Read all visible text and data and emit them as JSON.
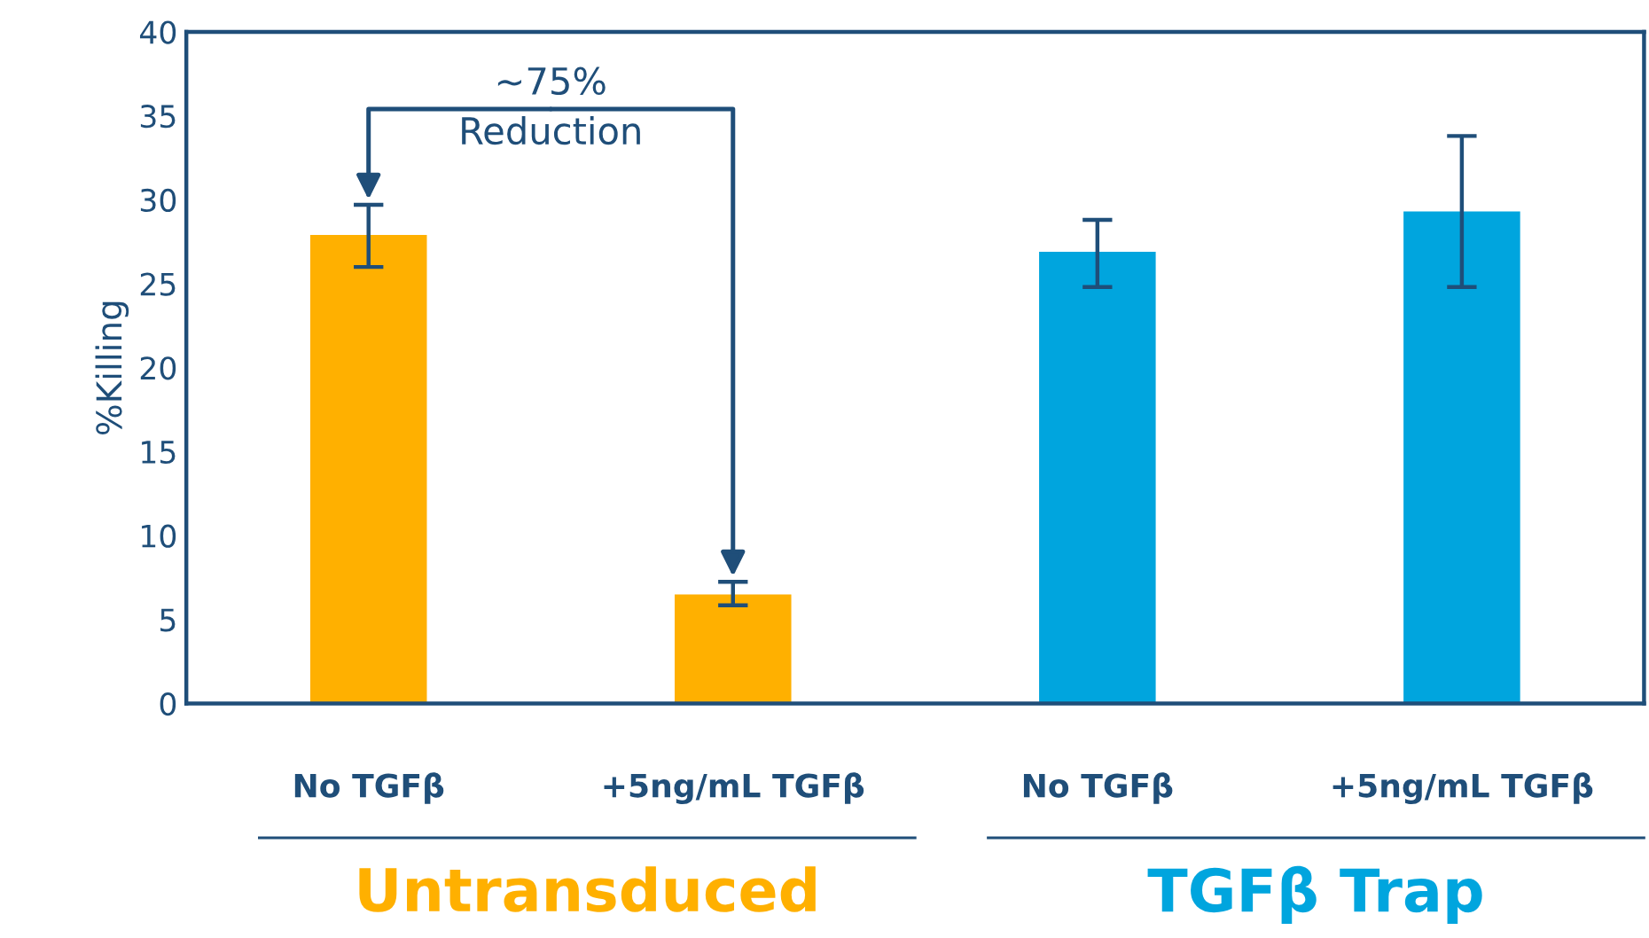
{
  "chart_data": {
    "type": "bar",
    "ylabel": "%Killing",
    "categories": [
      "No TGFβ",
      "+5ng/mL TGFβ",
      "No TGFβ",
      "+5ng/mL TGFβ"
    ],
    "values": [
      27.9,
      6.5,
      26.9,
      29.3
    ],
    "errors": [
      [
        26.0,
        29.7
      ],
      [
        5.85,
        7.25
      ],
      [
        24.8,
        28.8
      ],
      [
        24.8,
        33.8
      ]
    ],
    "colors": [
      "#ffb000",
      "#ffb000",
      "#00a5de",
      "#00a5de"
    ],
    "ylim": [
      0,
      40
    ],
    "yticks": [
      0,
      5,
      10,
      15,
      20,
      25,
      30,
      35,
      40
    ],
    "annotations": [
      "~75%\nReduction",
      "Untransduced",
      "TGFβ Trap"
    ]
  }
}
